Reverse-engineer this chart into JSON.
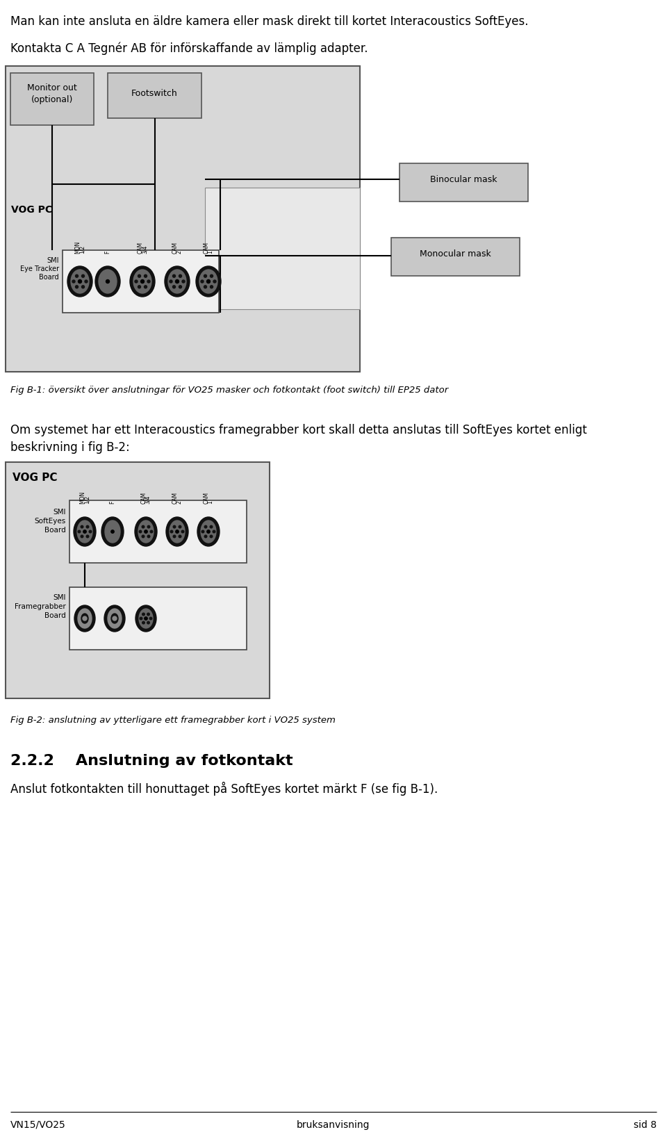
{
  "bg_color": "#ffffff",
  "line1_text": "Man kan inte ansluta en äldre kamera eller mask direkt till kortet Interacoustics SoftEyes.",
  "line2_text": "Kontakta C A Tegnér AB för införskaffande av lämplig adapter.",
  "fig1_caption": "Fig B-1: översikt över anslutningar för VO25 masker och fotkontakt (foot switch) till EP25 dator",
  "body_line1": "Om systemet har ett Interacoustics framegrabber kort skall detta anslutas till SoftEyes kortet enligt",
  "body_line2": "beskrivning i fig B-2:",
  "fig2_caption": "Fig B-2: anslutning av ytterligare ett framegrabber kort i VO25 system",
  "section_title": "2.2.2    Anslutning av fotkontakt",
  "section_body": "Anslut fotkontakten till honuttaget på SoftEyes kortet märkt F (se fig B-1).",
  "footer_left": "VN15/VO25",
  "footer_center": "bruksanvisning",
  "footer_right": "sid 8",
  "gray_box": "#c8c8c8",
  "light_gray_box": "#d8d8d8",
  "vog_bg": "#d4d4d4",
  "inner_box_bg": "#f0f0f0"
}
